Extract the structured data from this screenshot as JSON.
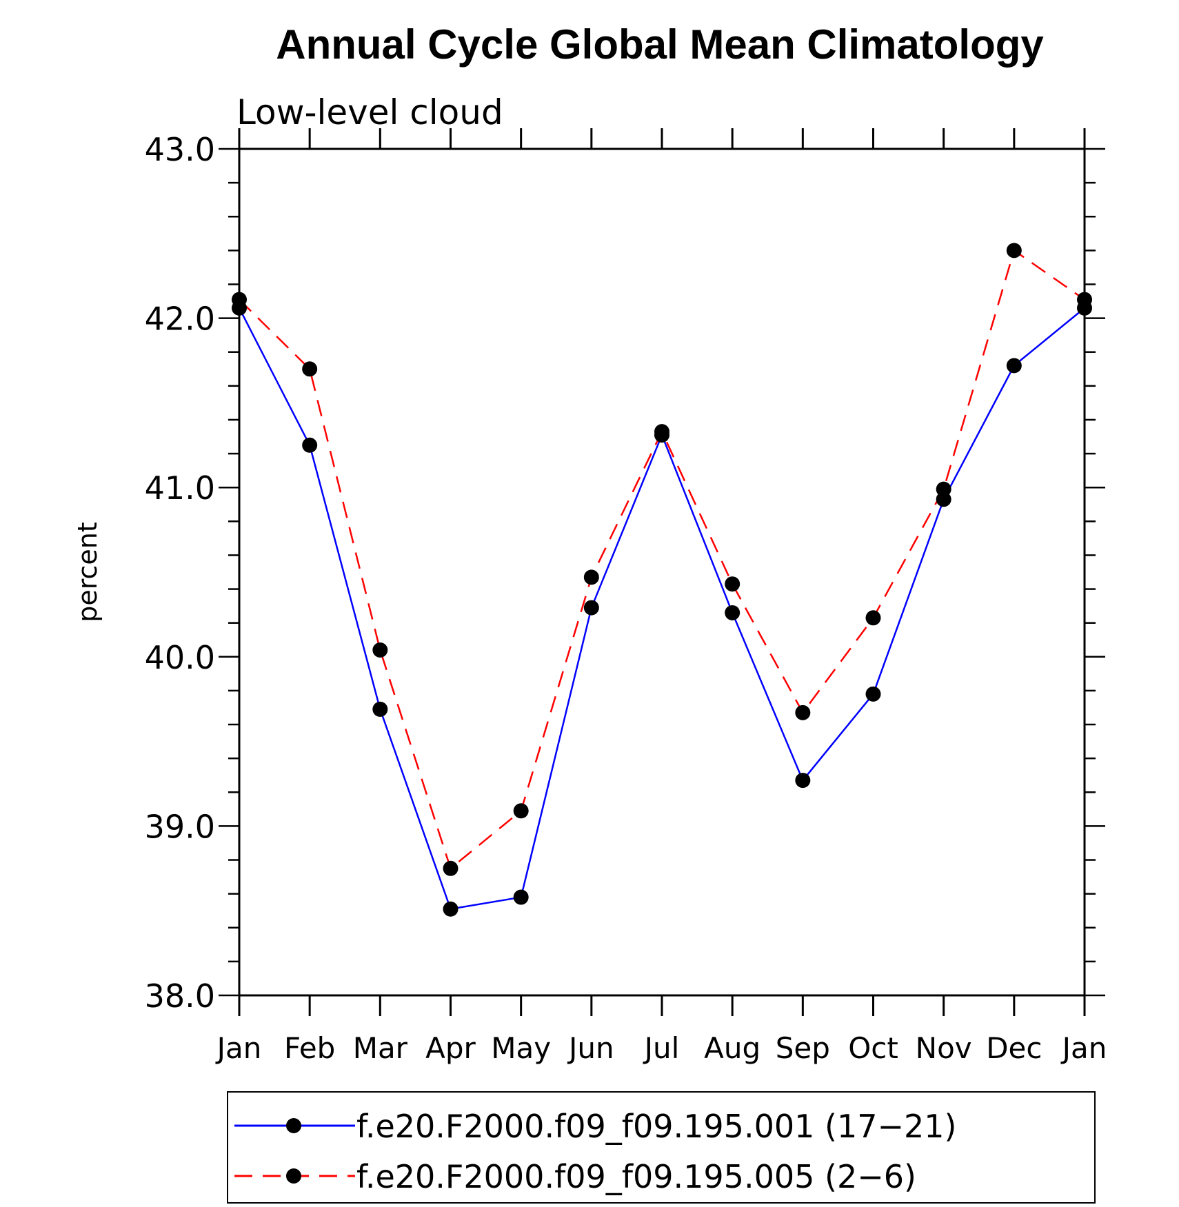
{
  "chart_data": {
    "type": "line",
    "title": "Annual Cycle Global Mean Climatology",
    "subtitle": "Low-level cloud",
    "ylabel": "percent",
    "xlabel": "",
    "categories": [
      "Jan",
      "Feb",
      "Mar",
      "Apr",
      "May",
      "Jun",
      "Jul",
      "Aug",
      "Sep",
      "Oct",
      "Nov",
      "Dec",
      "Jan"
    ],
    "ylim": [
      38.0,
      43.0
    ],
    "yticks": [
      "38.0",
      "39.0",
      "40.0",
      "41.0",
      "42.0",
      "43.0"
    ],
    "series": [
      {
        "name": "f.e20.F2000.f09_f09.195.001 (17−21)",
        "color": "#0000ff",
        "dash": "solid",
        "marker": "circle",
        "values": [
          42.06,
          41.25,
          39.69,
          38.51,
          38.58,
          40.29,
          41.31,
          40.26,
          39.27,
          39.78,
          40.93,
          41.72,
          42.06
        ]
      },
      {
        "name": "f.e20.F2000.f09_f09.195.005 (2−6)",
        "color": "#ff0000",
        "dash": "dashed",
        "marker": "circle",
        "values": [
          42.11,
          41.7,
          40.04,
          38.75,
          39.09,
          40.47,
          41.33,
          40.43,
          39.67,
          40.23,
          40.99,
          42.4,
          42.11
        ]
      }
    ],
    "legend_position": "bottom"
  }
}
